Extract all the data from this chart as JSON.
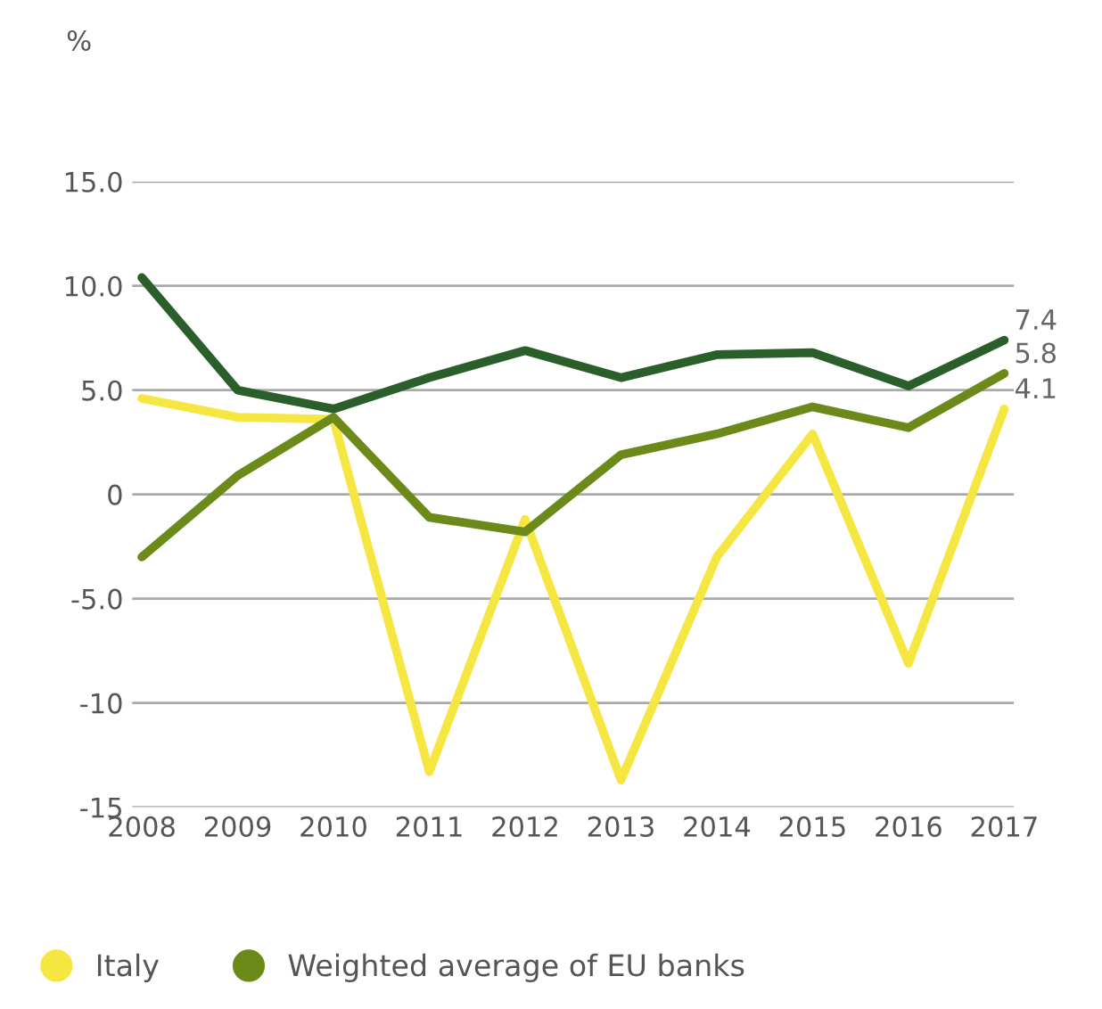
{
  "chart_data": {
    "type": "line",
    "ylabel": "%",
    "categories": [
      "2008",
      "2009",
      "2010",
      "2011",
      "2012",
      "2013",
      "2014",
      "2015",
      "2016",
      "2017"
    ],
    "series": [
      {
        "name": "Italy",
        "color": "#f5e642",
        "values": [
          4.6,
          3.7,
          3.6,
          -13.3,
          -1.2,
          -13.7,
          -3.0,
          2.9,
          -8.1,
          4.1
        ],
        "value_labels": [
          null,
          null,
          null,
          null,
          null,
          null,
          null,
          null,
          null,
          "4.1"
        ]
      },
      {
        "color": "#2a5e2a",
        "values": [
          10.4,
          5.0,
          4.1,
          5.6,
          6.9,
          5.6,
          6.7,
          6.8,
          5.2,
          7.4
        ],
        "value_labels": [
          null,
          null,
          null,
          null,
          null,
          null,
          null,
          null,
          null,
          "7.4"
        ]
      },
      {
        "name": "Weighted average of EU banks",
        "color": "#6b8a1a",
        "values": [
          -3.0,
          0.9,
          3.7,
          -1.1,
          -1.8,
          1.9,
          2.9,
          4.2,
          3.2,
          5.8
        ],
        "value_labels": [
          null,
          null,
          null,
          null,
          null,
          null,
          null,
          null,
          null,
          "5.8"
        ]
      }
    ],
    "ylim": [
      -15,
      15
    ],
    "yticks": [
      {
        "value": 15,
        "label": "15.0"
      },
      {
        "value": 10,
        "label": "10.0"
      },
      {
        "value": 5,
        "label": "5.0"
      },
      0,
      {
        "value": -5,
        "label": "-5.0"
      },
      -10,
      -15
    ],
    "grid": "y",
    "legend": "bottom",
    "marker": "none",
    "line_style": "solid"
  }
}
